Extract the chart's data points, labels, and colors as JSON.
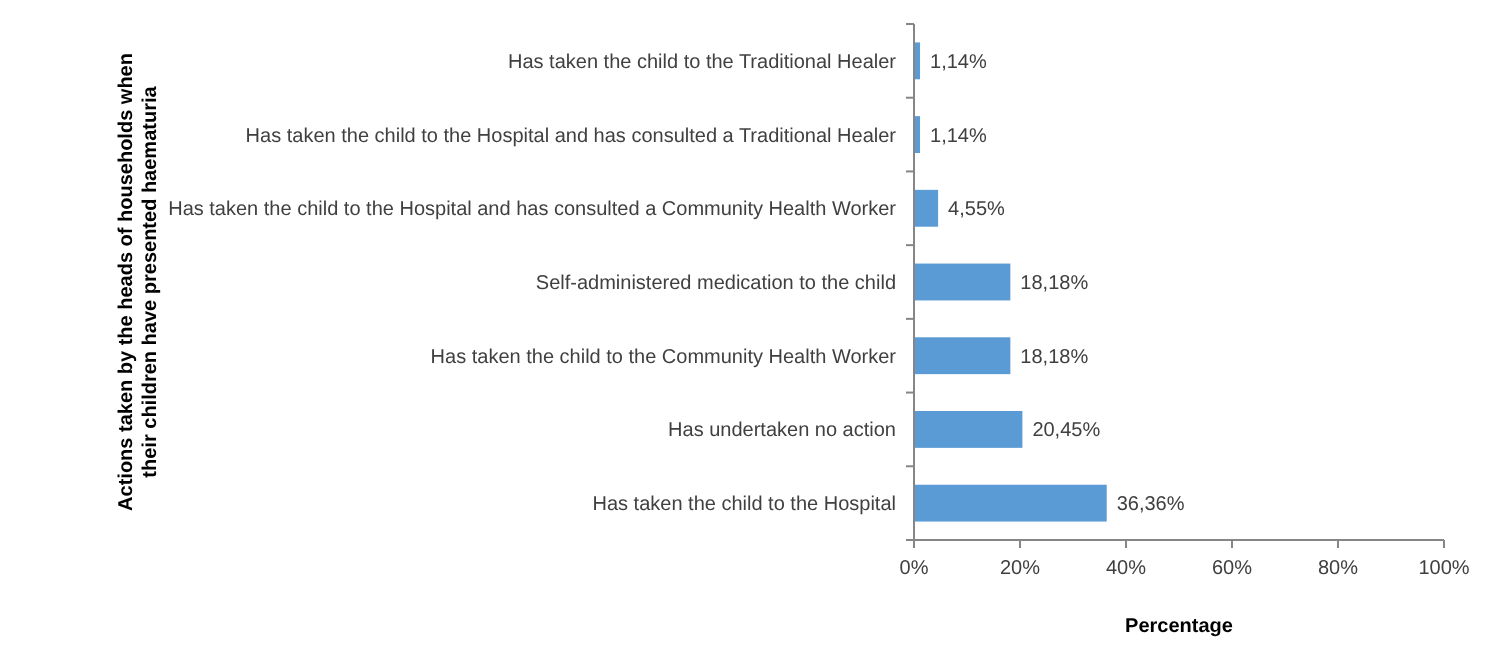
{
  "chart_data": {
    "type": "bar",
    "orientation": "horizontal",
    "xlabel": "Percentage",
    "ylabel": "Actions taken by the heads of households when their children have presented haematuria",
    "categories": [
      "Has taken the child to the Traditional Healer",
      "Has taken the child to the Hospital and has consulted a Traditional Healer",
      "Has taken the child to the Hospital and has consulted a Community Health Worker",
      "Self-administered medication to the child",
      "Has taken the child to the Community Health Worker",
      "Has undertaken no action",
      "Has taken the child to the Hospital"
    ],
    "values": [
      1.14,
      1.14,
      4.55,
      18.18,
      18.18,
      20.45,
      36.36
    ],
    "value_labels": [
      "1,14%",
      "1,14%",
      "4,55%",
      "18,18%",
      "18,18%",
      "20,45%",
      "36,36%"
    ],
    "color": "#5b9bd5",
    "xlim": [
      0,
      100
    ],
    "xticks": [
      {
        "value": 0,
        "label": "0%"
      },
      {
        "value": 20,
        "label": "20%"
      },
      {
        "value": 40,
        "label": "40%"
      },
      {
        "value": 60,
        "label": "60%"
      },
      {
        "value": 80,
        "label": "80%"
      },
      {
        "value": 100,
        "label": "100%"
      }
    ]
  }
}
